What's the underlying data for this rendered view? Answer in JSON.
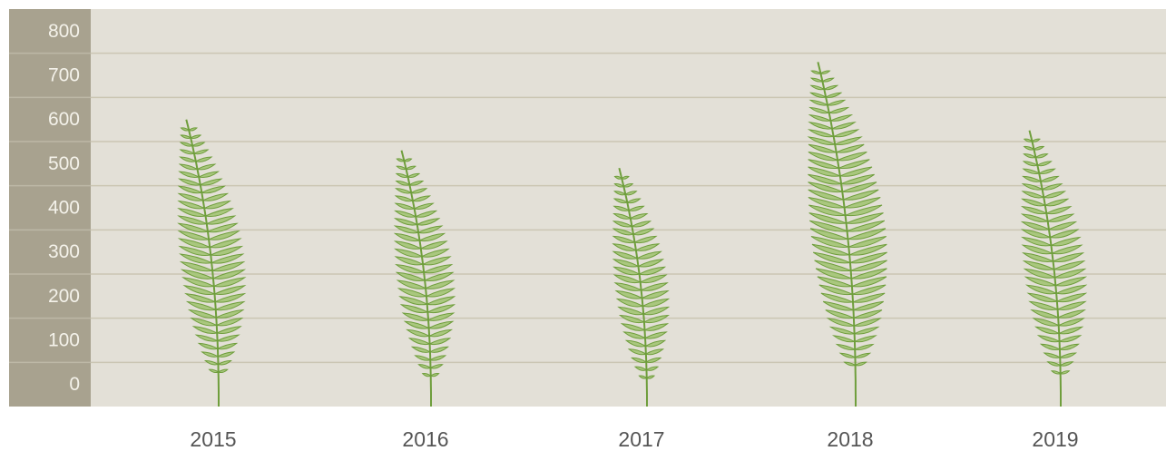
{
  "chart_data": {
    "type": "pictorial-bar",
    "categories": [
      "2015",
      "2016",
      "2017",
      "2018",
      "2019"
    ],
    "values": [
      600,
      530,
      490,
      730,
      575
    ],
    "color": "#6f9e3c",
    "ylim": [
      -50,
      850
    ],
    "yticks": [
      0,
      100,
      200,
      300,
      400,
      500,
      600,
      700,
      800
    ],
    "grid": true
  }
}
